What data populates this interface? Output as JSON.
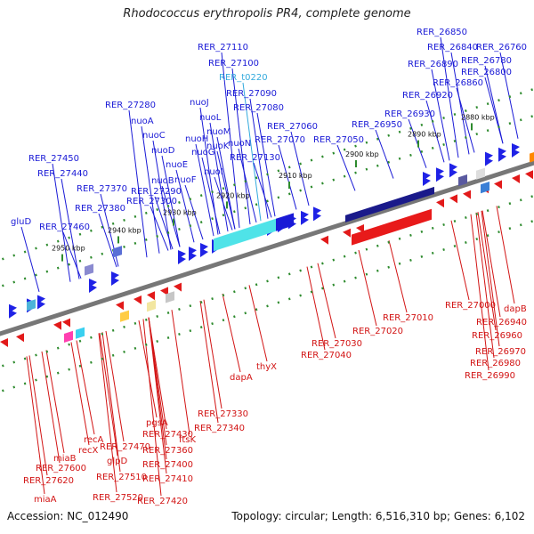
{
  "title": "Rhodococcus erythropolis PR4, complete genome",
  "footer": {
    "accession": "Accession: NC_012490",
    "summary": "Topology: circular; Length: 6,516,310 bp; Genes: 6,102"
  },
  "colors": {
    "forward_label": "#1a1ad6",
    "reverse_label": "#d21414",
    "rna_label": "#33aadd",
    "backbone": "#777777",
    "tick": "#2e8b2e"
  },
  "ticks": [
    "2880 kbp",
    "2890 kbp",
    "2900 kbp",
    "2910 kbp",
    "2920 kbp",
    "2930 kbp",
    "2940 kbp",
    "2950 kbp"
  ],
  "forward_labels": [
    "RER_27110",
    "RER_27100",
    "RER_t0220",
    "RER_27090",
    "RER_27080",
    "RER_27060",
    "RER_27070",
    "RER_27050",
    "RER_27130",
    "RER_27280",
    "nuoA",
    "nuoC",
    "nuoD",
    "nuoE",
    "nuoB",
    "nuoF",
    "RER_27290",
    "RER_27300",
    "nuoJ",
    "nuoL",
    "nuoM",
    "nuoK",
    "nuoN",
    "nuoH",
    "nuoG",
    "nuoI",
    "RER_27450",
    "RER_27440",
    "RER_27370",
    "RER_27380",
    "gluD",
    "RER_27460",
    "RER_26850",
    "RER_26840",
    "RER_26760",
    "RER_26780",
    "RER_26890",
    "RER_26800",
    "RER_26860",
    "RER_26920",
    "RER_26930",
    "RER_26950"
  ],
  "reverse_labels": [
    "RER_27040",
    "RER_27030",
    "RER_27020",
    "RER_27010",
    "RER_27000",
    "dapB",
    "RER_26940",
    "RER_26960",
    "RER_26970",
    "RER_26980",
    "RER_26990",
    "thyX",
    "dapA",
    "RER_27330",
    "RER_27340",
    "ftsK",
    "pgsA",
    "RER_27430",
    "RER_27360",
    "RER_27400",
    "RER_27410",
    "RER_27420",
    "recA",
    "recX",
    "RER_27470",
    "glpD",
    "RER_27510",
    "RER_27520",
    "miaB",
    "RER_27600",
    "RER_27620",
    "miaA"
  ]
}
